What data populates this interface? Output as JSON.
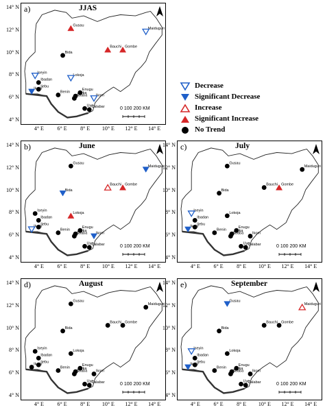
{
  "legend": [
    {
      "key": "decrease",
      "label": "Decrease"
    },
    {
      "key": "sig_decrease",
      "label": "Significant Decrease"
    },
    {
      "key": "increase",
      "label": "Increase"
    },
    {
      "key": "sig_increase",
      "label": "Significant Increase"
    },
    {
      "key": "no_trend",
      "label": "No Trend"
    }
  ],
  "colors": {
    "blue": "#1f5fc9",
    "red": "#d62728",
    "black": "#000000"
  },
  "axes": {
    "y_ticks": [
      "14° N",
      "12° N",
      "10° N",
      "8° N",
      "6° N",
      "4° N"
    ],
    "x_ticks": [
      "4° E",
      "6° E",
      "8° E",
      "10° E",
      "12° E",
      "14° E"
    ]
  },
  "scale": {
    "ticks": "0  100 200",
    "unit": "KM"
  },
  "north": "N",
  "stations": [
    {
      "name": "Gusau",
      "lon": 6.7,
      "lat": 12.2
    },
    {
      "name": "Maiduguri",
      "lon": 13.2,
      "lat": 11.9
    },
    {
      "name": "Bida",
      "lon": 6.0,
      "lat": 9.8
    },
    {
      "name": "Bauchi",
      "lon": 9.9,
      "lat": 10.3
    },
    {
      "name": "Gombe",
      "lon": 11.2,
      "lat": 10.3
    },
    {
      "name": "Iseyin",
      "lon": 3.6,
      "lat": 8.0
    },
    {
      "name": "Ibadan",
      "lon": 3.9,
      "lat": 7.4
    },
    {
      "name": "Lokoja",
      "lon": 6.7,
      "lat": 7.8
    },
    {
      "name": "Ijebu",
      "lon": 3.9,
      "lat": 6.8
    },
    {
      "name": "Benin",
      "lon": 5.6,
      "lat": 6.3
    },
    {
      "name": "Enugu",
      "lon": 7.5,
      "lat": 6.5
    },
    {
      "name": "Awka",
      "lon": 7.1,
      "lat": 6.2
    },
    {
      "name": "Ikom",
      "lon": 8.7,
      "lat": 6.0
    },
    {
      "name": "Uyo",
      "lon": 7.9,
      "lat": 5.1
    },
    {
      "name": "Calabar",
      "lon": 8.3,
      "lat": 5.0
    },
    {
      "name": "Ikeja",
      "lon": 3.3,
      "lat": 6.6
    },
    {
      "name": "Ababa",
      "lon": 7.0,
      "lat": 6.0
    }
  ],
  "panels": [
    {
      "id": "a",
      "label": "a)",
      "title": "JJAS",
      "trends": {
        "Gusau": "sig_increase",
        "Maiduguri": "decrease",
        "Bida": "no_trend",
        "Bauchi": "sig_increase",
        "Gombe": "sig_increase",
        "Iseyin": "decrease",
        "Ibadan": "no_trend",
        "Lokoja": "decrease",
        "Ijebu": "no_trend",
        "Benin": "no_trend",
        "Enugu": "no_trend",
        "Awka": "no_trend",
        "Ikom": "decrease",
        "Uyo": "no_trend",
        "Calabar": "no_trend",
        "Ikeja": "sig_decrease",
        "Ababa": "no_trend"
      }
    },
    {
      "id": "b",
      "label": "b)",
      "title": "June",
      "trends": {
        "Gusau": "no_trend",
        "Maiduguri": "sig_decrease",
        "Bida": "sig_decrease",
        "Bauchi": "increase",
        "Gombe": "sig_increase",
        "Iseyin": "no_trend",
        "Ibadan": "no_trend",
        "Lokoja": "sig_increase",
        "Ijebu": "no_trend",
        "Benin": "no_trend",
        "Enugu": "no_trend",
        "Awka": "no_trend",
        "Ikom": "sig_decrease",
        "Uyo": "no_trend",
        "Calabar": "no_trend",
        "Ikeja": "decrease",
        "Ababa": "no_trend"
      }
    },
    {
      "id": "c",
      "label": "c)",
      "title": "July",
      "trends": {
        "Gusau": "no_trend",
        "Maiduguri": "no_trend",
        "Bida": "no_trend",
        "Bauchi": "no_trend",
        "Gombe": "sig_increase",
        "Iseyin": "decrease",
        "Ibadan": "no_trend",
        "Lokoja": "no_trend",
        "Ijebu": "no_trend",
        "Benin": "no_trend",
        "Enugu": "no_trend",
        "Awka": "no_trend",
        "Ikom": "no_trend",
        "Uyo": "no_trend",
        "Calabar": "no_trend",
        "Ikeja": "sig_decrease",
        "Ababa": "no_trend"
      }
    },
    {
      "id": "d",
      "label": "d)",
      "title": "August",
      "trends": {
        "Gusau": "no_trend",
        "Maiduguri": "no_trend",
        "Bida": "no_trend",
        "Bauchi": "no_trend",
        "Gombe": "no_trend",
        "Iseyin": "no_trend",
        "Ibadan": "no_trend",
        "Lokoja": "no_trend",
        "Ijebu": "no_trend",
        "Benin": "no_trend",
        "Enugu": "no_trend",
        "Awka": "no_trend",
        "Ikom": "no_trend",
        "Uyo": "no_trend",
        "Calabar": "no_trend",
        "Ikeja": "no_trend",
        "Ababa": "no_trend"
      }
    },
    {
      "id": "e",
      "label": "e)",
      "title": "September",
      "trends": {
        "Gusau": "sig_decrease",
        "Maiduguri": "increase",
        "Bida": "no_trend",
        "Bauchi": "no_trend",
        "Gombe": "no_trend",
        "Iseyin": "decrease",
        "Ibadan": "no_trend",
        "Lokoja": "no_trend",
        "Ijebu": "no_trend",
        "Benin": "no_trend",
        "Enugu": "no_trend",
        "Awka": "no_trend",
        "Ikom": "no_trend",
        "Uyo": "no_trend",
        "Calabar": "no_trend",
        "Ikeja": "sig_decrease",
        "Ababa": "no_trend"
      }
    }
  ]
}
